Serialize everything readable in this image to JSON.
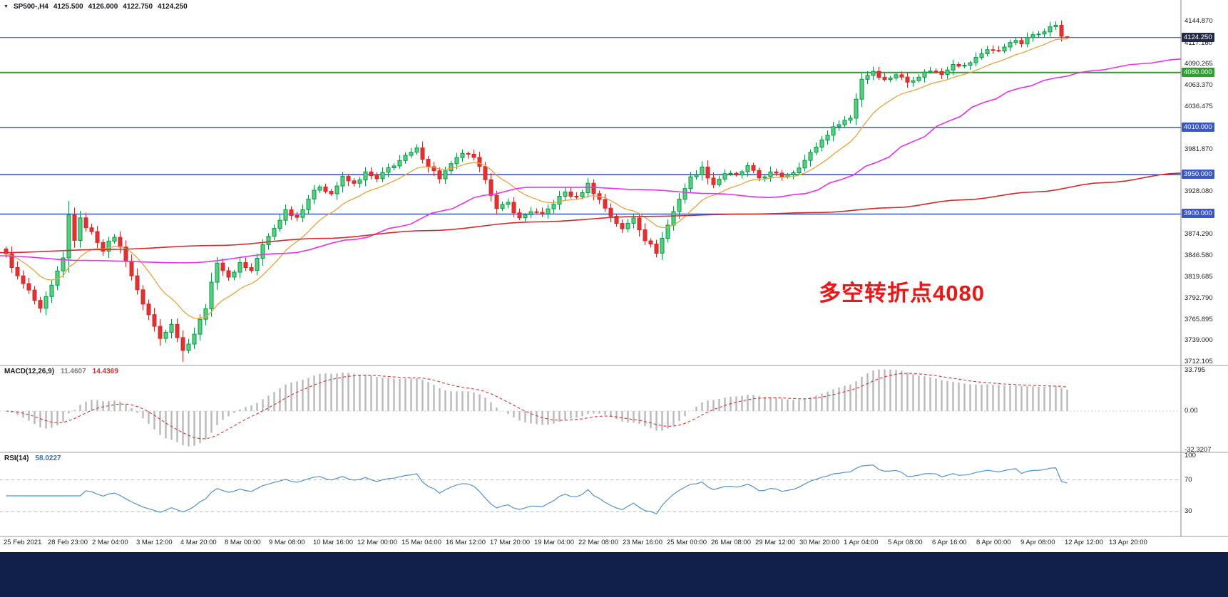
{
  "window": {
    "symbol_info": {
      "dropdown_icon": "▼",
      "symbol": "SP500-,H4",
      "open": "4125.500",
      "high": "4126.000",
      "low": "4122.750",
      "close": "4124.250"
    }
  },
  "chart_data": {
    "type": "candlestick",
    "symbol": "SP500-",
    "timeframe": "H4",
    "current_bar": {
      "open": 4125.5,
      "high": 4126.0,
      "low": 4122.75,
      "close": 4124.25
    },
    "y_axis": {
      "price_top": 4144.87,
      "price_bottom": 3712.105,
      "ticks": [
        "4144.870",
        "4117.160",
        "4090.265",
        "4063.370",
        "4036.475",
        "3981.870",
        "3928.080",
        "3874.290",
        "3846.580",
        "3819.685",
        "3792.790",
        "3765.895",
        "3739.000",
        "3712.105"
      ]
    },
    "x_axis": {
      "labels": [
        "25 Feb 2021",
        "28 Feb 23:00",
        "2 Mar 04:00",
        "3 Mar 12:00",
        "4 Mar 20:00",
        "8 Mar 00:00",
        "9 Mar 08:00",
        "10 Mar 16:00",
        "12 Mar 00:00",
        "15 Mar 04:00",
        "16 Mar 12:00",
        "17 Mar 20:00",
        "19 Mar 04:00",
        "22 Mar 08:00",
        "23 Mar 16:00",
        "25 Mar 00:00",
        "26 Mar 08:00",
        "29 Mar 12:00",
        "30 Mar 20:00",
        "1 Apr 04:00",
        "5 Apr 08:00",
        "6 Apr 16:00",
        "8 Apr 00:00",
        "9 Apr 08:00",
        "12 Apr 12:00",
        "13 Apr 20:00"
      ]
    },
    "levels": [
      {
        "label": "4124.250",
        "value": 4124.25,
        "role": "current-price",
        "line": "#39406b",
        "tag": "#252a44",
        "width": 1
      },
      {
        "label": "4080.000",
        "value": 4080.0,
        "role": "key-level",
        "line": "#2ca02c",
        "tag": "#2ca02c",
        "width": 2
      },
      {
        "label": "4010.000",
        "value": 4010.0,
        "role": "support",
        "line": "#3a57c4",
        "tag": "#3a57c4",
        "width": 1.6
      },
      {
        "label": "3950.000",
        "value": 3950.0,
        "role": "support",
        "line": "#3a57c4",
        "tag": "#3a57c4",
        "width": 1.6
      },
      {
        "label": "3900.000",
        "value": 3900.0,
        "role": "support",
        "line": "#3a57c4",
        "tag": "#3a57c4",
        "width": 1.6
      }
    ],
    "candle_count": 187,
    "price_keypoints": [
      [
        0,
        3848
      ],
      [
        2,
        3820
      ],
      [
        4,
        3802
      ],
      [
        6,
        3778
      ],
      [
        8,
        3808
      ],
      [
        10,
        3843
      ],
      [
        11,
        3898
      ],
      [
        12,
        3868
      ],
      [
        13,
        3893
      ],
      [
        15,
        3876
      ],
      [
        17,
        3855
      ],
      [
        19,
        3872
      ],
      [
        21,
        3842
      ],
      [
        23,
        3802
      ],
      [
        25,
        3772
      ],
      [
        27,
        3742
      ],
      [
        29,
        3762
      ],
      [
        31,
        3726
      ],
      [
        33,
        3748
      ],
      [
        35,
        3782
      ],
      [
        37,
        3840
      ],
      [
        39,
        3818
      ],
      [
        41,
        3838
      ],
      [
        43,
        3828
      ],
      [
        45,
        3860
      ],
      [
        47,
        3882
      ],
      [
        49,
        3905
      ],
      [
        51,
        3896
      ],
      [
        53,
        3920
      ],
      [
        55,
        3936
      ],
      [
        57,
        3926
      ],
      [
        59,
        3946
      ],
      [
        61,
        3938
      ],
      [
        63,
        3952
      ],
      [
        65,
        3944
      ],
      [
        67,
        3958
      ],
      [
        69,
        3968
      ],
      [
        72,
        3982
      ],
      [
        74,
        3962
      ],
      [
        76,
        3946
      ],
      [
        78,
        3962
      ],
      [
        80,
        3978
      ],
      [
        82,
        3970
      ],
      [
        84,
        3946
      ],
      [
        86,
        3906
      ],
      [
        88,
        3914
      ],
      [
        90,
        3894
      ],
      [
        92,
        3904
      ],
      [
        94,
        3898
      ],
      [
        96,
        3914
      ],
      [
        98,
        3928
      ],
      [
        100,
        3920
      ],
      [
        102,
        3938
      ],
      [
        104,
        3918
      ],
      [
        106,
        3898
      ],
      [
        108,
        3880
      ],
      [
        110,
        3896
      ],
      [
        112,
        3868
      ],
      [
        114,
        3852
      ],
      [
        116,
        3886
      ],
      [
        118,
        3920
      ],
      [
        120,
        3946
      ],
      [
        122,
        3958
      ],
      [
        124,
        3938
      ],
      [
        126,
        3952
      ],
      [
        128,
        3948
      ],
      [
        130,
        3960
      ],
      [
        132,
        3946
      ],
      [
        134,
        3952
      ],
      [
        136,
        3948
      ],
      [
        138,
        3954
      ],
      [
        140,
        3968
      ],
      [
        142,
        3986
      ],
      [
        144,
        4002
      ],
      [
        146,
        4016
      ],
      [
        148,
        4022
      ],
      [
        150,
        4072
      ],
      [
        152,
        4082
      ],
      [
        154,
        4070
      ],
      [
        156,
        4078
      ],
      [
        158,
        4068
      ],
      [
        160,
        4076
      ],
      [
        162,
        4083
      ],
      [
        164,
        4078
      ],
      [
        166,
        4092
      ],
      [
        168,
        4088
      ],
      [
        170,
        4098
      ],
      [
        172,
        4110
      ],
      [
        174,
        4106
      ],
      [
        176,
        4120
      ],
      [
        178,
        4117
      ],
      [
        180,
        4128
      ],
      [
        182,
        4134
      ],
      [
        184,
        4140
      ],
      [
        185,
        4126
      ],
      [
        186,
        4124.25
      ]
    ],
    "overrides": {
      "31": {
        "low": 3712.105
      },
      "184": {
        "high": 4144.87
      },
      "186": {
        "open": 4125.5,
        "high": 4126.0,
        "low": 4122.75,
        "close": 4124.25
      }
    },
    "moving_averages": {
      "fast": {
        "type": "ema",
        "period": 13,
        "color": "#e8a33d"
      },
      "medium": {
        "color": "#e832e8",
        "points": [
          [
            0,
            3847
          ],
          [
            120,
            3841
          ],
          [
            260,
            3838
          ],
          [
            400,
            3850
          ],
          [
            500,
            3868
          ],
          [
            560,
            3884
          ],
          [
            620,
            3904
          ],
          [
            680,
            3924
          ],
          [
            740,
            3934
          ],
          [
            820,
            3934
          ],
          [
            900,
            3931
          ],
          [
            1000,
            3926
          ],
          [
            1080,
            3921
          ],
          [
            1130,
            3926
          ],
          [
            1180,
            3944
          ],
          [
            1230,
            3966
          ],
          [
            1280,
            3992
          ],
          [
            1330,
            4018
          ],
          [
            1380,
            4042
          ],
          [
            1430,
            4060
          ],
          [
            1480,
            4073
          ],
          [
            1530,
            4082
          ],
          [
            1600,
            4091
          ],
          [
            1656,
            4097
          ]
        ]
      },
      "slow": {
        "color": "#d42a2a",
        "points": [
          [
            0,
            3851
          ],
          [
            150,
            3855
          ],
          [
            300,
            3860
          ],
          [
            450,
            3869
          ],
          [
            600,
            3879
          ],
          [
            750,
            3890
          ],
          [
            900,
            3897
          ],
          [
            1050,
            3900
          ],
          [
            1150,
            3902
          ],
          [
            1250,
            3908
          ],
          [
            1350,
            3918
          ],
          [
            1450,
            3928
          ],
          [
            1550,
            3940
          ],
          [
            1656,
            3952
          ]
        ]
      }
    },
    "annotation": {
      "text": "多空转折点4080",
      "color": "#f01414"
    },
    "indicators": [
      {
        "id": "macd",
        "title": "MACD(12,26,9)",
        "value_main": "11.4607",
        "value_signal": "14.4369",
        "params": {
          "fast": 12,
          "slow": 26,
          "signal": 9
        },
        "axis_ticks": [
          {
            "label": "33.795",
            "value": 33.795
          },
          {
            "label": "0.00",
            "value": 0
          },
          {
            "label": "-32.3207",
            "value": -32.3207
          }
        ],
        "histogram_color": "#b9b9b9",
        "signal_color": "#e03030"
      },
      {
        "id": "rsi",
        "title": "RSI(14)",
        "value_main": "58.0227",
        "period": 14,
        "axis_ticks": [
          {
            "label": "100",
            "value": 100
          },
          {
            "label": "70",
            "value": 70
          },
          {
            "label": "30",
            "value": 30
          }
        ],
        "levels": [
          70,
          30
        ],
        "line_color": "#4f93d2"
      }
    ],
    "colors": {
      "background": "#ffffff",
      "up": "#0a9648",
      "up_fill": "#56cf7e",
      "down": "#d62828",
      "down_fill": "#e03232"
    }
  }
}
